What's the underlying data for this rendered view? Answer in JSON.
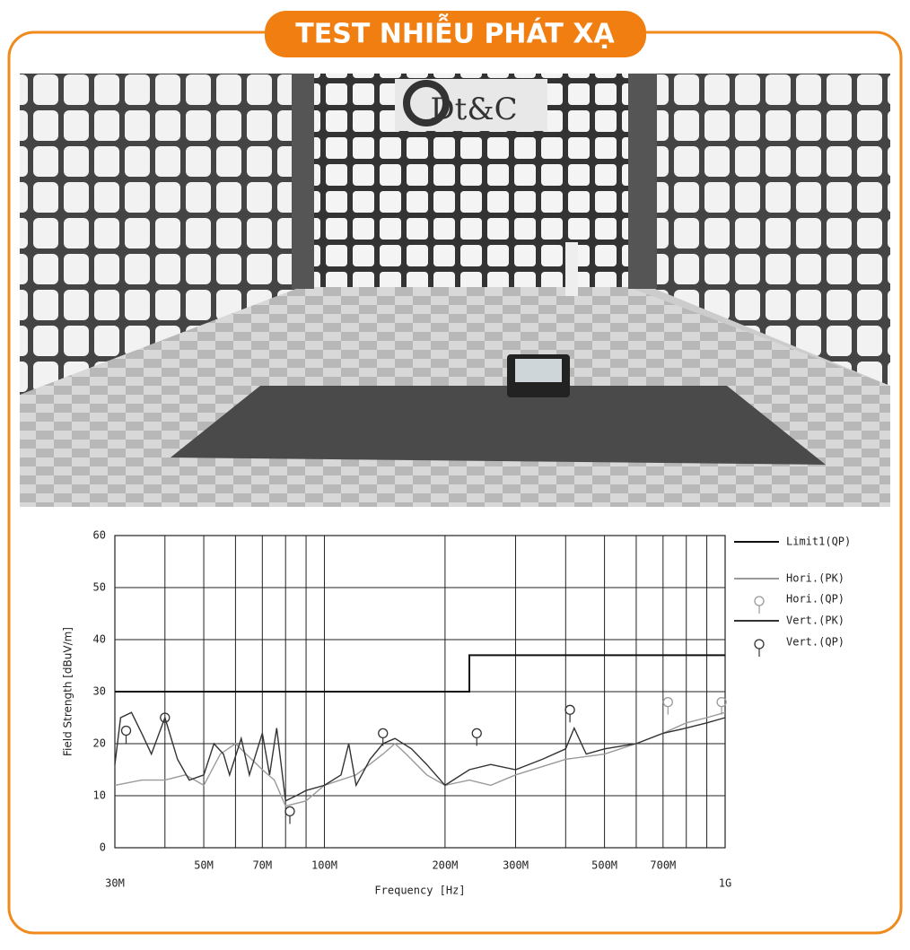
{
  "header": {
    "title": "TEST NHIỄU PHÁT XẠ"
  },
  "photo": {
    "logo": "Dt&C"
  },
  "chart_data": {
    "type": "line",
    "x_label": "Frequency [Hz]",
    "y_label": "Field Strength [dBuV/m]",
    "x_scale": "log",
    "xlim": [
      30000000,
      1000000000
    ],
    "xticks": [
      {
        "value": 30000000,
        "label": "30M"
      },
      {
        "value": 50000000,
        "label": "50M"
      },
      {
        "value": 70000000,
        "label": "70M"
      },
      {
        "value": 100000000,
        "label": "100M"
      },
      {
        "value": 200000000,
        "label": "200M"
      },
      {
        "value": 300000000,
        "label": "300M"
      },
      {
        "value": 500000000,
        "label": "500M"
      },
      {
        "value": 700000000,
        "label": "700M"
      },
      {
        "value": 1000000000,
        "label": "1G"
      }
    ],
    "xgrid_minor": [
      40000000,
      60000000,
      80000000,
      90000000,
      400000000,
      600000000,
      800000000,
      900000000
    ],
    "ylim": [
      0,
      60
    ],
    "yticks": [
      0,
      10,
      20,
      30,
      40,
      50,
      60
    ],
    "grid": true,
    "series": [
      {
        "name": "Limit1(QP)",
        "color": "#111111",
        "style": "line",
        "x": [
          30000000,
          230000000,
          230000000,
          1000000000
        ],
        "values": [
          30,
          30,
          37,
          37
        ]
      },
      {
        "name": "Hori.(PK)",
        "color": "#9a9a9a",
        "style": "line",
        "x": [
          30000000,
          35000000,
          40000000,
          45000000,
          50000000,
          55000000,
          60000000,
          70000000,
          75000000,
          80000000,
          90000000,
          100000000,
          120000000,
          140000000,
          150000000,
          160000000,
          180000000,
          200000000,
          230000000,
          260000000,
          300000000,
          400000000,
          500000000,
          600000000,
          700000000,
          800000000,
          900000000,
          1000000000
        ],
        "values": [
          12,
          13,
          13,
          14,
          12,
          18,
          20,
          15,
          13,
          8,
          9,
          12,
          14,
          18,
          20,
          18,
          14,
          12,
          13,
          12,
          14,
          17,
          18,
          20,
          22,
          24,
          25,
          26
        ]
      },
      {
        "name": "Hori.(QP)",
        "color": "#9a9a9a",
        "style": "marker",
        "x": [
          720000000,
          980000000
        ],
        "values": [
          28,
          28
        ]
      },
      {
        "name": "Vert.(PK)",
        "color": "#333333",
        "style": "line",
        "x": [
          30000000,
          31000000,
          33000000,
          35000000,
          37000000,
          40000000,
          43000000,
          46000000,
          50000000,
          53000000,
          56000000,
          58000000,
          62000000,
          65000000,
          70000000,
          73000000,
          76000000,
          80000000,
          85000000,
          90000000,
          100000000,
          110000000,
          115000000,
          120000000,
          130000000,
          140000000,
          150000000,
          165000000,
          180000000,
          200000000,
          230000000,
          260000000,
          300000000,
          350000000,
          400000000,
          420000000,
          450000000,
          500000000,
          600000000,
          700000000,
          800000000,
          900000000,
          1000000000
        ],
        "values": [
          16,
          25,
          26,
          22,
          18,
          25,
          17,
          13,
          14,
          20,
          18,
          14,
          21,
          14,
          22,
          14,
          23,
          9,
          10,
          11,
          12,
          14,
          20,
          12,
          17,
          20,
          21,
          19,
          16,
          12,
          15,
          16,
          15,
          17,
          19,
          23,
          18,
          19,
          20,
          22,
          23,
          24,
          25
        ]
      },
      {
        "name": "Vert.(QP)",
        "color": "#333333",
        "style": "marker",
        "x": [
          32000000,
          40000000,
          82000000,
          140000000,
          240000000,
          410000000
        ],
        "values": [
          22.5,
          25,
          7,
          22,
          22,
          26.5
        ]
      }
    ]
  }
}
